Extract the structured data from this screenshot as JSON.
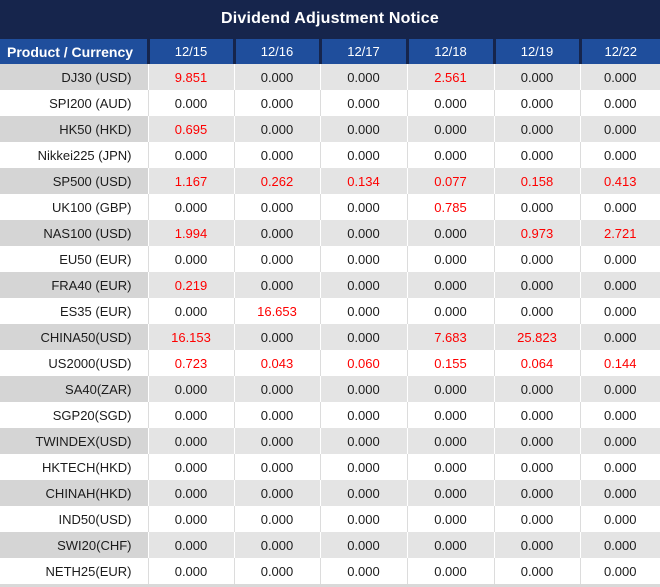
{
  "title": "Dividend Adjustment Notice",
  "colors": {
    "title_bg": "#16254C",
    "header_bg": "#1F4E9C",
    "header_border": "#16254C",
    "row_stripe": "#E4E4E4",
    "product_stripe": "#D5D5D5",
    "value_text": "#1C1C1C",
    "highlight_red": "#FE0000",
    "header_text": "#FFFFFF"
  },
  "chart_data": {
    "type": "table",
    "title": "Dividend Adjustment Notice",
    "columns": [
      "Product / Currency",
      "12/15",
      "12/16",
      "12/17",
      "12/18",
      "12/19",
      "12/22"
    ],
    "rows": [
      {
        "product": "DJ30 (USD)",
        "values": [
          "9.851",
          "0.000",
          "0.000",
          "2.561",
          "0.000",
          "0.000"
        ],
        "red": [
          0,
          3
        ]
      },
      {
        "product": "SPI200 (AUD)",
        "values": [
          "0.000",
          "0.000",
          "0.000",
          "0.000",
          "0.000",
          "0.000"
        ],
        "red": []
      },
      {
        "product": "HK50 (HKD)",
        "values": [
          "0.695",
          "0.000",
          "0.000",
          "0.000",
          "0.000",
          "0.000"
        ],
        "red": [
          0
        ]
      },
      {
        "product": "Nikkei225 (JPN)",
        "values": [
          "0.000",
          "0.000",
          "0.000",
          "0.000",
          "0.000",
          "0.000"
        ],
        "red": []
      },
      {
        "product": "SP500 (USD)",
        "values": [
          "1.167",
          "0.262",
          "0.134",
          "0.077",
          "0.158",
          "0.413"
        ],
        "red": [
          0,
          1,
          2,
          3,
          4,
          5
        ]
      },
      {
        "product": "UK100 (GBP)",
        "values": [
          "0.000",
          "0.000",
          "0.000",
          "0.785",
          "0.000",
          "0.000"
        ],
        "red": [
          3
        ]
      },
      {
        "product": "NAS100 (USD)",
        "values": [
          "1.994",
          "0.000",
          "0.000",
          "0.000",
          "0.973",
          "2.721"
        ],
        "red": [
          0,
          4,
          5
        ]
      },
      {
        "product": "EU50 (EUR)",
        "values": [
          "0.000",
          "0.000",
          "0.000",
          "0.000",
          "0.000",
          "0.000"
        ],
        "red": []
      },
      {
        "product": "FRA40 (EUR)",
        "values": [
          "0.219",
          "0.000",
          "0.000",
          "0.000",
          "0.000",
          "0.000"
        ],
        "red": [
          0
        ]
      },
      {
        "product": "ES35 (EUR)",
        "values": [
          "0.000",
          "16.653",
          "0.000",
          "0.000",
          "0.000",
          "0.000"
        ],
        "red": [
          1
        ]
      },
      {
        "product": "CHINA50(USD)",
        "values": [
          "16.153",
          "0.000",
          "0.000",
          "7.683",
          "25.823",
          "0.000"
        ],
        "red": [
          0,
          3,
          4
        ]
      },
      {
        "product": "US2000(USD)",
        "values": [
          "0.723",
          "0.043",
          "0.060",
          "0.155",
          "0.064",
          "0.144"
        ],
        "red": [
          0,
          1,
          2,
          3,
          4,
          5
        ]
      },
      {
        "product": "SA40(ZAR)",
        "values": [
          "0.000",
          "0.000",
          "0.000",
          "0.000",
          "0.000",
          "0.000"
        ],
        "red": []
      },
      {
        "product": "SGP20(SGD)",
        "values": [
          "0.000",
          "0.000",
          "0.000",
          "0.000",
          "0.000",
          "0.000"
        ],
        "red": []
      },
      {
        "product": "TWINDEX(USD)",
        "values": [
          "0.000",
          "0.000",
          "0.000",
          "0.000",
          "0.000",
          "0.000"
        ],
        "red": []
      },
      {
        "product": "HKTECH(HKD)",
        "values": [
          "0.000",
          "0.000",
          "0.000",
          "0.000",
          "0.000",
          "0.000"
        ],
        "red": []
      },
      {
        "product": "CHINAH(HKD)",
        "values": [
          "0.000",
          "0.000",
          "0.000",
          "0.000",
          "0.000",
          "0.000"
        ],
        "red": []
      },
      {
        "product": "IND50(USD)",
        "values": [
          "0.000",
          "0.000",
          "0.000",
          "0.000",
          "0.000",
          "0.000"
        ],
        "red": []
      },
      {
        "product": "SWI20(CHF)",
        "values": [
          "0.000",
          "0.000",
          "0.000",
          "0.000",
          "0.000",
          "0.000"
        ],
        "red": []
      },
      {
        "product": "NETH25(EUR)",
        "values": [
          "0.000",
          "0.000",
          "0.000",
          "0.000",
          "0.000",
          "0.000"
        ],
        "red": []
      }
    ]
  }
}
